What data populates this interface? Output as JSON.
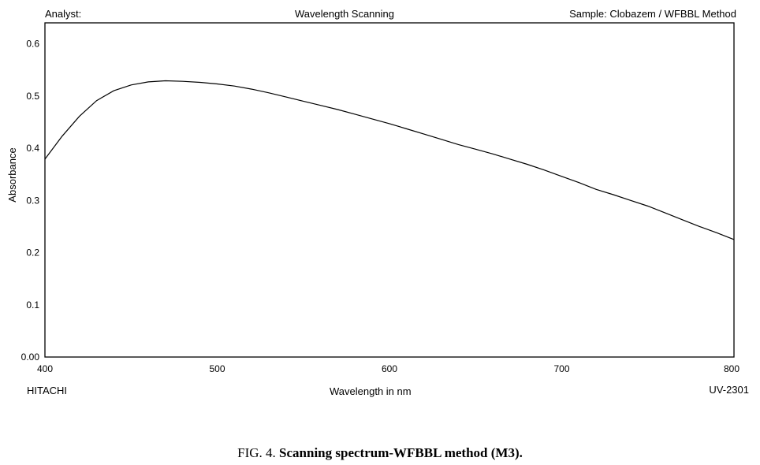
{
  "header": {
    "analyst": "Analyst:",
    "title": "Wavelength Scanning",
    "sample": "Sample: Clobazem / WFBBL Method"
  },
  "footer": {
    "manufacturer": "HITACHI",
    "model": "UV-2301"
  },
  "caption": {
    "prefix": "FIG. 4.",
    "text": "Scanning spectrum-WFBBL method (M3)."
  },
  "chart_data": {
    "type": "line",
    "xlabel": "Wavelength in nm",
    "ylabel": "Absorbance",
    "xlim": [
      400,
      800
    ],
    "ylim": [
      0,
      0.64
    ],
    "x_ticks": [
      400,
      500,
      600,
      700,
      800
    ],
    "x_tick_labels": [
      "400",
      "500",
      "600",
      "700",
      "800"
    ],
    "y_ticks": [
      0,
      0.1,
      0.2,
      0.3,
      0.4,
      0.5,
      0.6
    ],
    "y_tick_labels": [
      "0.00",
      "0.1",
      "0.2",
      "0.3",
      "0.4",
      "0.5",
      "0.6"
    ],
    "grid": false,
    "line_color": "#000000",
    "series": [
      {
        "x": [
          400,
          410,
          420,
          430,
          440,
          450,
          460,
          470,
          480,
          490,
          500,
          510,
          520,
          530,
          540,
          550,
          560,
          570,
          580,
          590,
          600,
          610,
          620,
          630,
          640,
          650,
          660,
          670,
          680,
          690,
          700,
          710,
          720,
          730,
          740,
          750,
          760,
          770,
          780,
          790,
          800
        ],
        "y": [
          0.379,
          0.423,
          0.461,
          0.491,
          0.51,
          0.521,
          0.527,
          0.529,
          0.528,
          0.526,
          0.523,
          0.519,
          0.513,
          0.506,
          0.498,
          0.49,
          0.482,
          0.474,
          0.465,
          0.456,
          0.447,
          0.437,
          0.427,
          0.417,
          0.407,
          0.398,
          0.389,
          0.379,
          0.369,
          0.358,
          0.346,
          0.334,
          0.321,
          0.311,
          0.3,
          0.289,
          0.276,
          0.263,
          0.25,
          0.238,
          0.225
        ]
      }
    ]
  }
}
